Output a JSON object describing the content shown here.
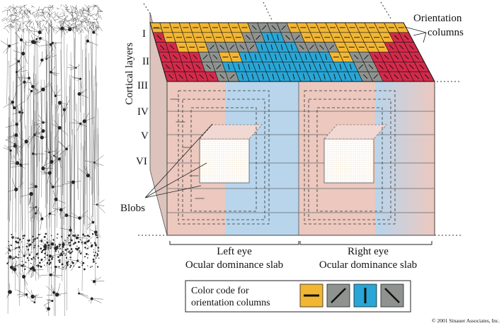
{
  "labels": {
    "orientation_columns_line1": "Orientation",
    "orientation_columns_line2": "columns",
    "cortical_layers": "Cortical layers",
    "layers": [
      "I",
      "II",
      "III",
      "IV",
      "V",
      "VI"
    ],
    "blobs": "Blobs",
    "left_eye_line1": "Left eye",
    "left_eye_line2": "Ocular dominance slab",
    "right_eye_line1": "Right eye",
    "right_eye_line2": "Ocular dominance slab",
    "color_code_line1": "Color code for",
    "color_code_line2": "orientation columns",
    "copyright": "© 2001 Sinauer Associates, Inc."
  },
  "colors": {
    "orientation_horizontal": "#f2b632",
    "orientation_oblique_right": "#8f9390",
    "orientation_vertical": "#28a6d6",
    "orientation_oblique_left": "#8f9390",
    "red_border": "#d42a4a",
    "pink_slab": "#ecc8bf",
    "blue_slab": "#b8d5ec",
    "blob_fill": "#f4c9c6"
  },
  "legend": [
    {
      "name": "horizontal",
      "icon": "horizontal-line-icon"
    },
    {
      "name": "oblique-right",
      "icon": "oblique-right-line-icon"
    },
    {
      "name": "vertical",
      "icon": "vertical-line-icon"
    },
    {
      "name": "oblique-left",
      "icon": "oblique-left-line-icon"
    }
  ]
}
